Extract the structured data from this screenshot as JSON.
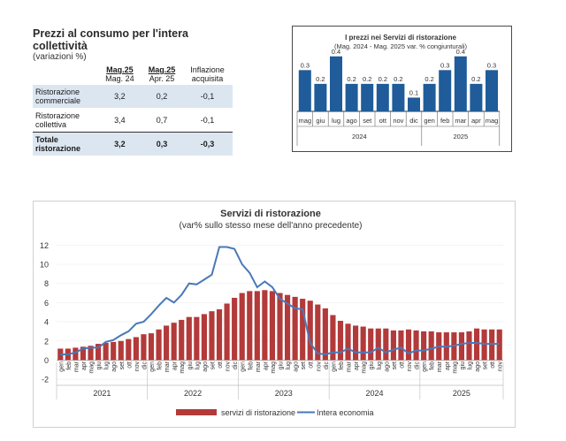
{
  "table": {
    "title": "Prezzi al consumo per l'intera collettività",
    "subtitle": "(variazioni %)",
    "columns": [
      {
        "l1": "Mag.25",
        "l2": "Mag. 24"
      },
      {
        "l1": "Mag.25",
        "l2": "Apr. 25"
      },
      {
        "l1": "Inflazione",
        "l2": "acquisita"
      }
    ],
    "rows": [
      {
        "l1": "Ristorazione",
        "l2": "commerciale",
        "v1": "3,2",
        "v2": "0,2",
        "v3": "-0,1"
      },
      {
        "l1": "Ristorazione",
        "l2": "collettiva",
        "v1": "3,4",
        "v2": "0,7",
        "v3": "-0,1"
      },
      {
        "l1": "Totale",
        "l2": "ristorazione",
        "v1": "3,2",
        "v2": "0,3",
        "v3": "-0,3"
      }
    ]
  },
  "colors": {
    "bar": "#1f5c99",
    "red": "#b33a3a",
    "line": "#4a78b8"
  },
  "chart_data": [
    {
      "type": "bar",
      "title": "I prezzi nei Servizi di ristorazione",
      "subtitle": "(Mag. 2024 - Mag. 2025 var. % congiunturali)",
      "categories": [
        "mag",
        "giu",
        "lug",
        "ago",
        "set",
        "ott",
        "nov",
        "dic",
        "gen",
        "feb",
        "mar",
        "apr",
        "mag"
      ],
      "values": [
        0.3,
        0.2,
        0.4,
        0.2,
        0.2,
        0.2,
        0.2,
        0.1,
        0.2,
        0.3,
        0.4,
        0.2,
        0.3
      ],
      "value_labels": [
        "0.3",
        "0.2",
        "0.4",
        "0.2",
        "0.2",
        "0.2",
        "0.2",
        "0.1",
        "0.2",
        "0.3",
        "0.4",
        "0.2",
        "0.3"
      ],
      "year_groups": [
        {
          "label": "2024",
          "count": 8
        },
        {
          "label": "2025",
          "count": 5
        }
      ],
      "ylim": [
        0,
        0.45
      ]
    },
    {
      "type": "bar+line",
      "title": "Servizi di ristorazione",
      "subtitle": "(var% sullo stesso mese dell'anno precedente)",
      "months": [
        "gen",
        "feb",
        "mar",
        "apr",
        "mag",
        "giu",
        "lug",
        "ago",
        "set",
        "ott",
        "nov",
        "dic"
      ],
      "years": [
        "2021",
        "2022",
        "2023",
        "2024",
        "2025"
      ],
      "yticks": [
        -2,
        0,
        2,
        4,
        6,
        8,
        10,
        12
      ],
      "ylim": [
        -2,
        13
      ],
      "series": [
        {
          "name": "servizi di ristorazione",
          "kind": "bar",
          "values": [
            1.2,
            1.2,
            1.3,
            1.4,
            1.5,
            1.7,
            1.8,
            1.9,
            2.0,
            2.2,
            2.4,
            2.7,
            2.8,
            3.2,
            3.6,
            3.9,
            4.2,
            4.5,
            4.5,
            4.8,
            5.1,
            5.3,
            5.9,
            6.5,
            7.0,
            7.2,
            7.2,
            7.3,
            7.2,
            7.0,
            6.8,
            6.6,
            6.4,
            6.2,
            5.8,
            5.4,
            4.7,
            4.1,
            3.8,
            3.6,
            3.5,
            3.3,
            3.3,
            3.3,
            3.1,
            3.1,
            3.2,
            3.1,
            3.0,
            3.0,
            2.9,
            2.9,
            2.9,
            2.9,
            3.0,
            3.3,
            3.2,
            3.2,
            3.2
          ]
        },
        {
          "name": "Intera economia",
          "kind": "line",
          "values": [
            0.6,
            0.6,
            0.8,
            1.2,
            1.3,
            1.3,
            1.9,
            2.1,
            2.6,
            3.0,
            3.8,
            4.0,
            4.8,
            5.7,
            6.5,
            6.0,
            6.8,
            8.0,
            7.9,
            8.4,
            8.9,
            11.8,
            11.8,
            11.6,
            10.0,
            9.1,
            7.6,
            8.2,
            7.6,
            6.4,
            5.9,
            5.4,
            5.3,
            1.8,
            0.7,
            0.6,
            0.8,
            0.8,
            1.2,
            0.8,
            0.8,
            0.8,
            1.3,
            0.8,
            1.1,
            1.3,
            0.7,
            1.0,
            1.0,
            1.2,
            1.4,
            1.4,
            1.5,
            1.7,
            1.8,
            1.8,
            1.7,
            1.7,
            1.7
          ]
        }
      ],
      "legend": [
        "servizi di ristorazione",
        "Intera economia"
      ]
    }
  ]
}
